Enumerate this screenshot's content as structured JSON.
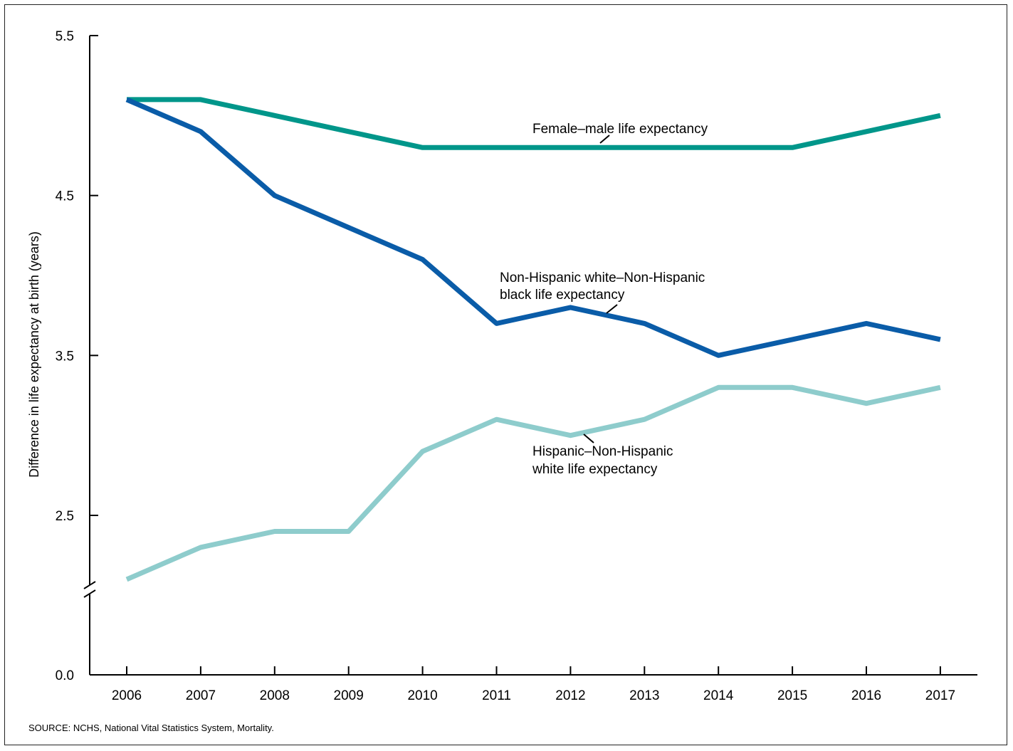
{
  "chart_data": {
    "type": "line",
    "title": "",
    "xlabel": "",
    "ylabel": "Difference in life expectancy at birth (years)",
    "x": [
      2006,
      2007,
      2008,
      2009,
      2010,
      2011,
      2012,
      2013,
      2014,
      2015,
      2016,
      2017
    ],
    "y_ticks": [
      "0.0",
      "2.5",
      "3.5",
      "4.5",
      "5.5"
    ],
    "ylim": [
      0.0,
      5.5
    ],
    "y_axis_break": true,
    "grid": false,
    "legend": "none (direct labels)",
    "series": [
      {
        "name": "Female–male life expectancy",
        "color": "#00968a",
        "values": [
          5.1,
          5.1,
          5.0,
          4.9,
          4.8,
          4.8,
          4.8,
          4.8,
          4.8,
          4.8,
          4.9,
          5.0
        ]
      },
      {
        "name": "Non-Hispanic white–Non-Hispanic black life expectancy",
        "color": "#0a5ca8",
        "values": [
          5.1,
          4.9,
          4.5,
          4.3,
          4.1,
          3.7,
          3.8,
          3.7,
          3.5,
          3.6,
          3.7,
          3.6
        ]
      },
      {
        "name": "Hispanic–Non-Hispanic white life expectancy",
        "color": "#8ecccc",
        "values": [
          2.1,
          2.3,
          2.4,
          2.4,
          2.9,
          3.1,
          3.0,
          3.1,
          3.3,
          3.3,
          3.2,
          3.3
        ]
      }
    ],
    "annotations": [
      {
        "lines": [
          "Female–male life expectancy"
        ]
      },
      {
        "lines": [
          "Non-Hispanic white–Non-Hispanic",
          "black life expectancy"
        ]
      },
      {
        "lines": [
          "Hispanic–Non-Hispanic",
          "white life expectancy"
        ]
      }
    ]
  },
  "source_note": "SOURCE: NCHS, National Vital Statistics System, Mortality."
}
